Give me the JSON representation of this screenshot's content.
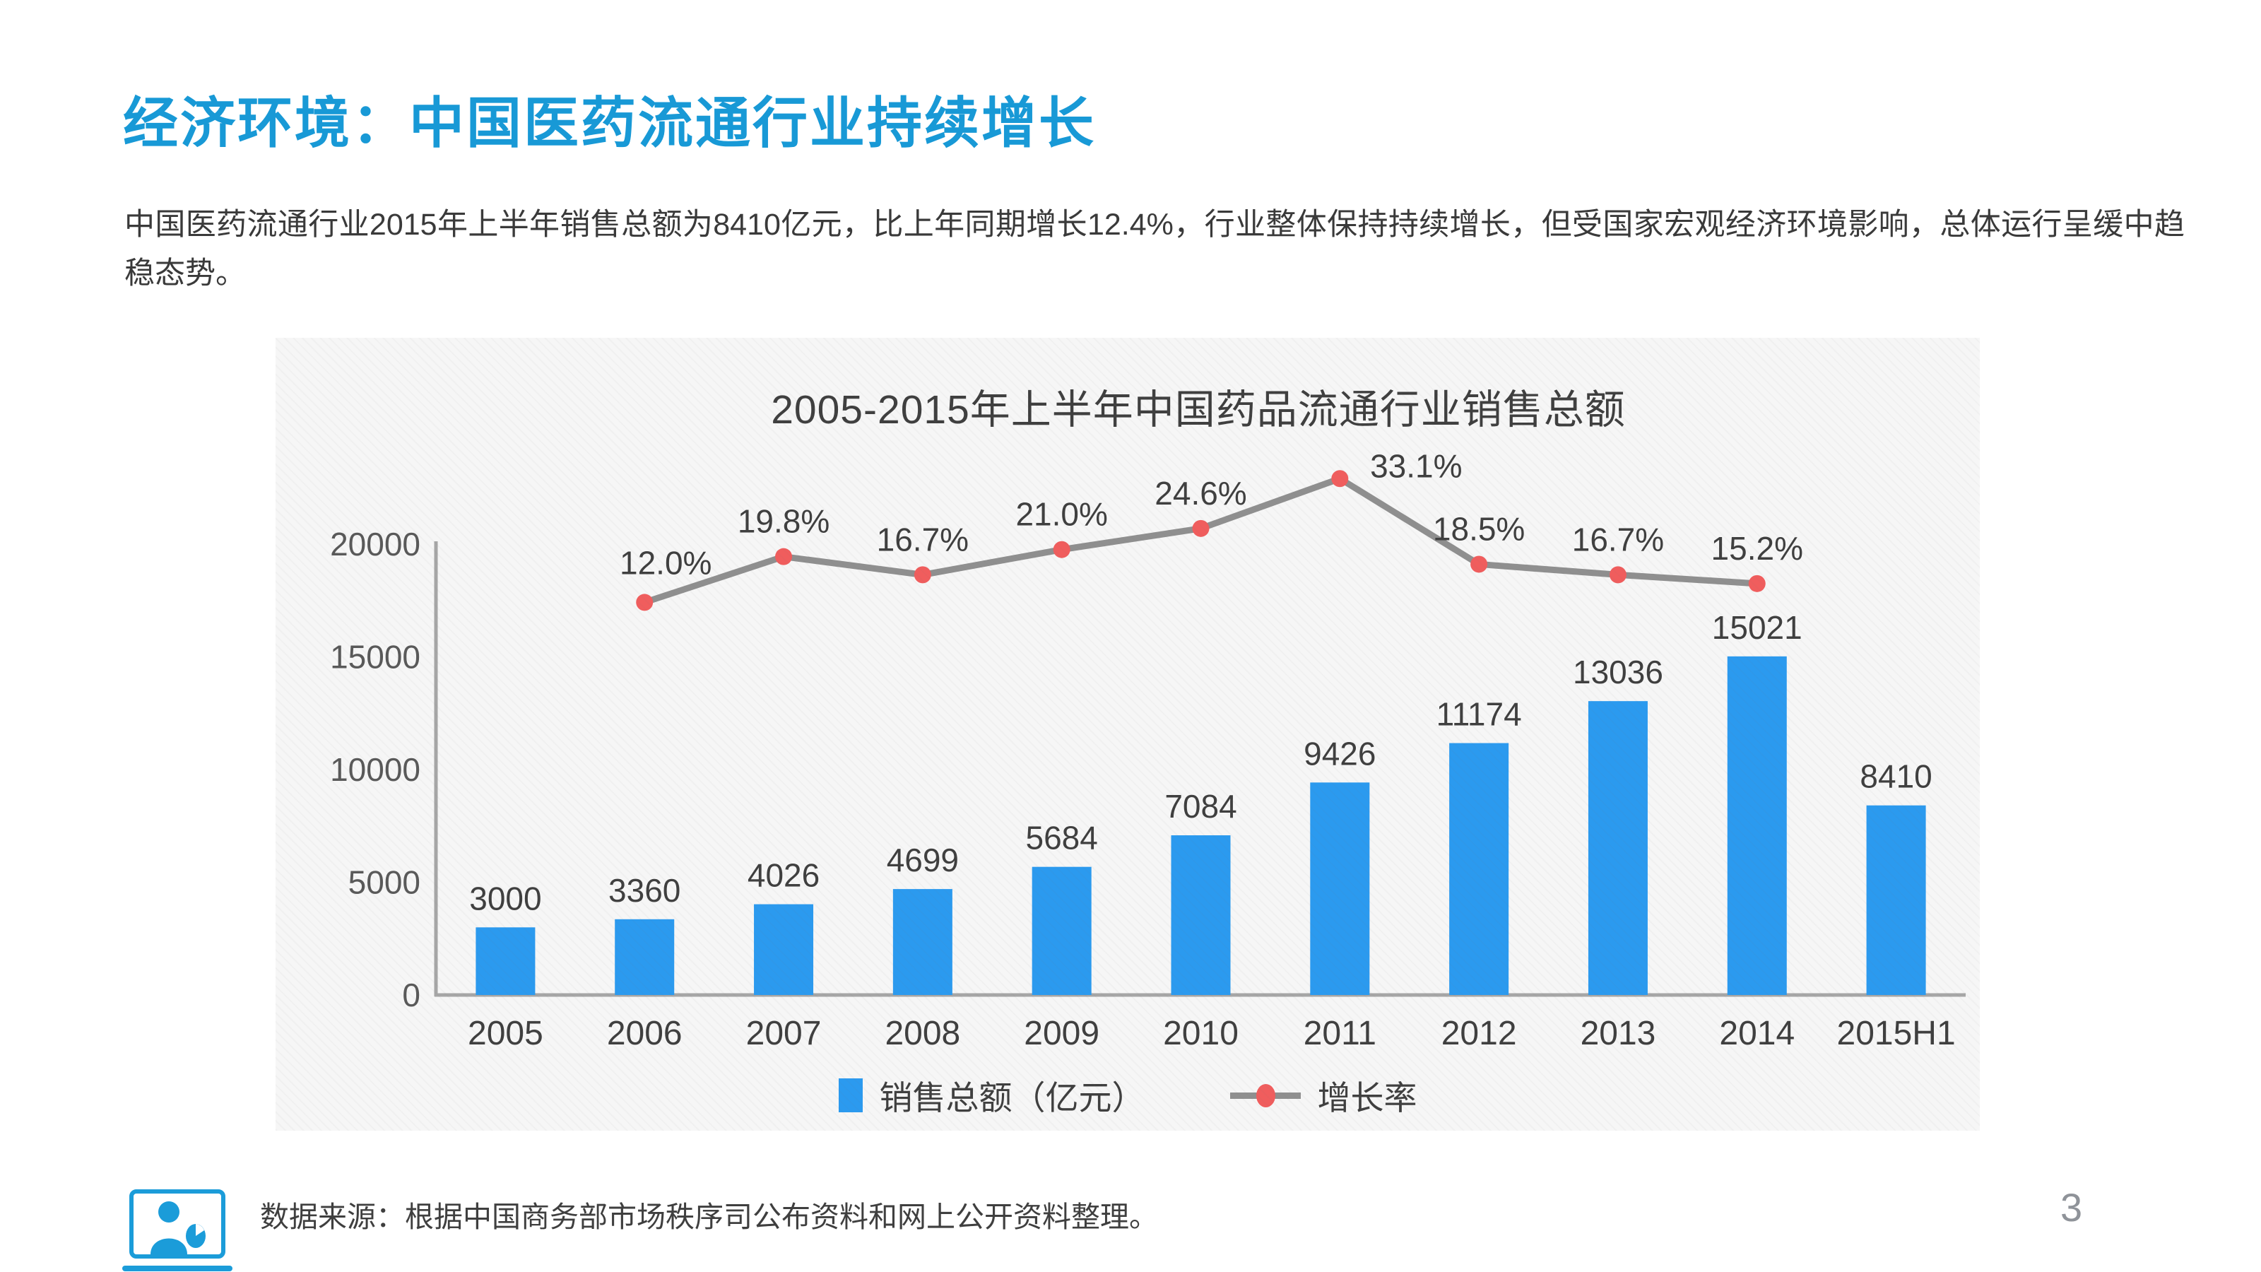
{
  "slide": {
    "title": "经济环境：中国医药流通行业持续增长",
    "paragraph": "中国医药流通行业2015年上半年销售总额为8410亿元，比上年同期增长12.4%，行业整体保持持续增长，但受国家宏观经济环境影响，总体运行呈缓中趋稳态势。",
    "source_note": "数据来源：根据中国商务部市场秩序司公布资料和网上公开资料整理。",
    "page_number": "3"
  },
  "chart_data": {
    "type": "bar",
    "subtype": "combo-bar-line",
    "title": "2005-2015年上半年中国药品流通行业销售总额",
    "categories": [
      "2005",
      "2006",
      "2007",
      "2008",
      "2009",
      "2010",
      "2011",
      "2012",
      "2013",
      "2014",
      "2015H1"
    ],
    "series": [
      {
        "name": "销售总额（亿元）",
        "type": "bar",
        "color": "#2b9aef",
        "values": [
          3000,
          3360,
          4026,
          4699,
          5684,
          7084,
          9426,
          11174,
          13036,
          15021,
          8410
        ]
      },
      {
        "name": "增长率",
        "type": "line",
        "color": "#8f8f8f",
        "marker_color": "#f05d5d",
        "values": [
          null,
          12.0,
          19.8,
          16.7,
          21.0,
          24.6,
          33.1,
          18.5,
          16.7,
          15.2,
          null
        ],
        "labels": [
          null,
          "12.0%",
          "19.8%",
          "16.7%",
          "21.0%",
          "24.6%",
          "33.1%",
          "18.5%",
          "16.7%",
          "15.2%",
          null
        ]
      }
    ],
    "y_axis": {
      "ticks": [
        0,
        5000,
        10000,
        15000,
        20000
      ],
      "range": [
        0,
        20000
      ],
      "gridlines": false
    },
    "legend": {
      "position": "bottom"
    }
  },
  "colors": {
    "title_blue": "#1899d6",
    "bar_blue": "#2b9aef",
    "marker_red": "#f05d5d",
    "line_gray": "#8f8f8f",
    "text_dark": "#3f3f3f",
    "tick_gray": "#595959",
    "panel_bg": "#f6f6f6",
    "page_gray": "#8f9399"
  }
}
